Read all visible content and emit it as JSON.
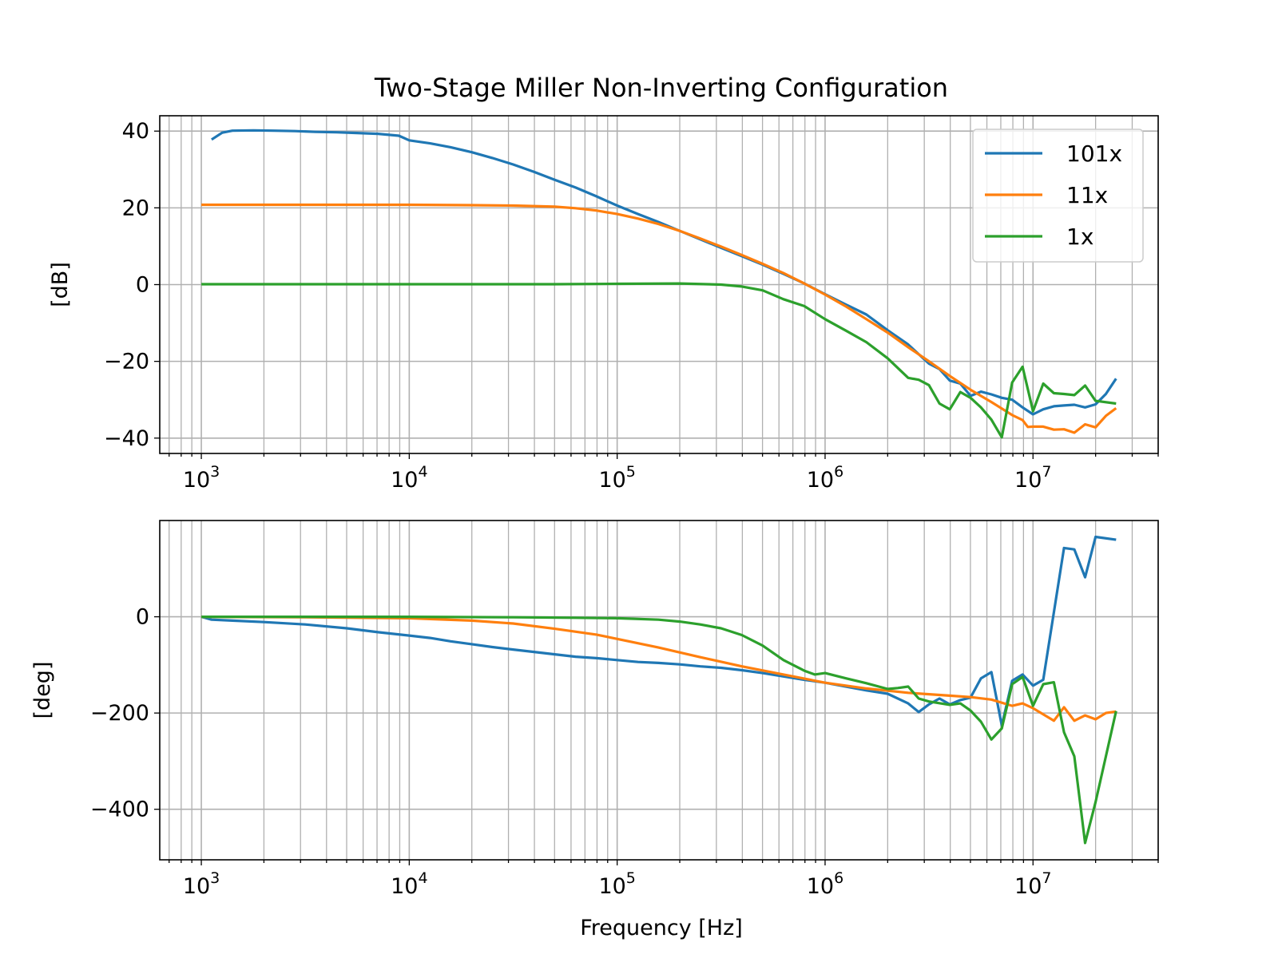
{
  "chart_data": [
    {
      "type": "line",
      "title": "Two-Stage Miller Non-Inverting Configuration",
      "xlabel": "",
      "ylabel": "[dB]",
      "xscale": "log",
      "xlim": [
        631,
        40000000
      ],
      "ylim": [
        -44,
        44
      ],
      "xticks": [
        {
          "value": 1000,
          "label": "10^3"
        },
        {
          "value": 10000,
          "label": "10^4"
        },
        {
          "value": 100000,
          "label": "10^5"
        },
        {
          "value": 1000000,
          "label": "10^6"
        },
        {
          "value": 10000000,
          "label": "10^7"
        }
      ],
      "yticks": [
        {
          "value": 40,
          "label": "40"
        },
        {
          "value": 20,
          "label": "20"
        },
        {
          "value": 0,
          "label": "0"
        },
        {
          "value": -20,
          "label": "−20"
        },
        {
          "value": -40,
          "label": "−40"
        }
      ],
      "grid": true,
      "legend": {
        "position": "upper-right",
        "entries": [
          "101x",
          "11x",
          "1x"
        ]
      },
      "series": [
        {
          "name": "101x",
          "color": "#1f77b4",
          "points": [
            [
              1120,
              37.8
            ],
            [
              1260,
              39.6
            ],
            [
              1410,
              40.1
            ],
            [
              1780,
              40.2
            ],
            [
              2240,
              40.1
            ],
            [
              2820,
              40.0
            ],
            [
              3550,
              39.8
            ],
            [
              4470,
              39.7
            ],
            [
              5620,
              39.5
            ],
            [
              7080,
              39.3
            ],
            [
              8910,
              38.8
            ],
            [
              10000,
              37.6
            ],
            [
              12600,
              36.8
            ],
            [
              15800,
              35.8
            ],
            [
              20000,
              34.5
            ],
            [
              25100,
              33.0
            ],
            [
              31600,
              31.3
            ],
            [
              39800,
              29.4
            ],
            [
              50100,
              27.3
            ],
            [
              63100,
              25.3
            ],
            [
              79400,
              23.0
            ],
            [
              100000,
              20.6
            ],
            [
              126000,
              18.4
            ],
            [
              158000,
              16.3
            ],
            [
              200000,
              14.0
            ],
            [
              251000,
              11.8
            ],
            [
              316000,
              9.6
            ],
            [
              398000,
              7.4
            ],
            [
              501000,
              5.2
            ],
            [
              631000,
              2.8
            ],
            [
              794000,
              0.3
            ],
            [
              1000000,
              -2.5
            ],
            [
              1260000,
              -5.2
            ],
            [
              1580000,
              -7.8
            ],
            [
              2000000,
              -11.9
            ],
            [
              2510000,
              -15.6
            ],
            [
              3160000,
              -20.6
            ],
            [
              3550000,
              -22.0
            ],
            [
              3980000,
              -25.0
            ],
            [
              4470000,
              -25.8
            ],
            [
              5010000,
              -29.0
            ],
            [
              5620000,
              -27.9
            ],
            [
              6310000,
              -28.6
            ],
            [
              7080000,
              -29.5
            ],
            [
              7940000,
              -30.0
            ],
            [
              8910000,
              -32.0
            ],
            [
              10000000,
              -33.8
            ],
            [
              11200000,
              -32.5
            ],
            [
              12600000,
              -31.7
            ],
            [
              14100000,
              -31.5
            ],
            [
              15800000,
              -31.3
            ],
            [
              17800000,
              -32.0
            ],
            [
              20000000,
              -31.2
            ],
            [
              22400000,
              -28.5
            ],
            [
              25100000,
              -24.5
            ]
          ]
        },
        {
          "name": "11x",
          "color": "#ff7f0e",
          "points": [
            [
              1000,
              20.8
            ],
            [
              3160,
              20.8
            ],
            [
              10000,
              20.8
            ],
            [
              20000,
              20.7
            ],
            [
              31600,
              20.6
            ],
            [
              50100,
              20.3
            ],
            [
              63100,
              19.9
            ],
            [
              79400,
              19.3
            ],
            [
              100000,
              18.4
            ],
            [
              126000,
              17.2
            ],
            [
              158000,
              15.8
            ],
            [
              200000,
              14.0
            ],
            [
              251000,
              12.0
            ],
            [
              316000,
              9.9
            ],
            [
              398000,
              7.7
            ],
            [
              501000,
              5.4
            ],
            [
              631000,
              3.0
            ],
            [
              794000,
              0.3
            ],
            [
              1000000,
              -2.6
            ],
            [
              1260000,
              -5.7
            ],
            [
              1580000,
              -9.0
            ],
            [
              2000000,
              -12.5
            ],
            [
              2510000,
              -16.3
            ],
            [
              3160000,
              -20.0
            ],
            [
              3980000,
              -23.8
            ],
            [
              5010000,
              -27.4
            ],
            [
              6310000,
              -30.6
            ],
            [
              7940000,
              -34.0
            ],
            [
              8910000,
              -35.3
            ],
            [
              9440000,
              -37.1
            ],
            [
              10000000,
              -37.0
            ],
            [
              11200000,
              -37.0
            ],
            [
              12600000,
              -37.8
            ],
            [
              14100000,
              -37.7
            ],
            [
              15800000,
              -38.6
            ],
            [
              17800000,
              -36.4
            ],
            [
              20000000,
              -37.2
            ],
            [
              22400000,
              -34.2
            ],
            [
              25100000,
              -32.2
            ]
          ]
        },
        {
          "name": "1x",
          "color": "#2ca02c",
          "points": [
            [
              1000,
              0.1
            ],
            [
              10000,
              0.1
            ],
            [
              50100,
              0.1
            ],
            [
              100000,
              0.2
            ],
            [
              200000,
              0.3
            ],
            [
              316000,
              0.0
            ],
            [
              398000,
              -0.5
            ],
            [
              501000,
              -1.5
            ],
            [
              631000,
              -3.8
            ],
            [
              794000,
              -5.6
            ],
            [
              1000000,
              -9.0
            ],
            [
              1260000,
              -12.0
            ],
            [
              1580000,
              -15.0
            ],
            [
              2000000,
              -19.2
            ],
            [
              2510000,
              -24.3
            ],
            [
              2820000,
              -24.8
            ],
            [
              3160000,
              -26.2
            ],
            [
              3550000,
              -31.0
            ],
            [
              3980000,
              -32.5
            ],
            [
              4470000,
              -28.0
            ],
            [
              5010000,
              -29.5
            ],
            [
              5620000,
              -32.0
            ],
            [
              6310000,
              -35.2
            ],
            [
              7080000,
              -39.8
            ],
            [
              7940000,
              -25.5
            ],
            [
              8910000,
              -21.4
            ],
            [
              10000000,
              -33.0
            ],
            [
              11200000,
              -25.8
            ],
            [
              12600000,
              -28.3
            ],
            [
              14100000,
              -28.5
            ],
            [
              15800000,
              -28.8
            ],
            [
              17800000,
              -26.3
            ],
            [
              20000000,
              -30.3
            ],
            [
              25100000,
              -31.0
            ]
          ]
        }
      ]
    },
    {
      "type": "line",
      "title": "",
      "xlabel": "Frequency [Hz]",
      "ylabel": "[deg]",
      "xscale": "log",
      "xlim": [
        631,
        40000000
      ],
      "ylim": [
        -505,
        200
      ],
      "xticks": [
        {
          "value": 1000,
          "label": "10^3"
        },
        {
          "value": 10000,
          "label": "10^4"
        },
        {
          "value": 100000,
          "label": "10^5"
        },
        {
          "value": 1000000,
          "label": "10^6"
        },
        {
          "value": 10000000,
          "label": "10^7"
        }
      ],
      "yticks": [
        {
          "value": 0,
          "label": "0"
        },
        {
          "value": -200,
          "label": "−200"
        },
        {
          "value": -400,
          "label": "−400"
        }
      ],
      "grid": true,
      "series": [
        {
          "name": "101x",
          "color": "#1f77b4",
          "points": [
            [
              1000,
              0
            ],
            [
              1120,
              -6
            ],
            [
              1410,
              -8
            ],
            [
              2000,
              -11
            ],
            [
              3160,
              -16
            ],
            [
              5010,
              -24
            ],
            [
              7080,
              -32
            ],
            [
              10000,
              -39
            ],
            [
              12600,
              -44
            ],
            [
              15800,
              -51
            ],
            [
              20000,
              -57
            ],
            [
              25100,
              -63
            ],
            [
              31600,
              -68
            ],
            [
              39800,
              -73
            ],
            [
              50100,
              -78
            ],
            [
              63100,
              -83
            ],
            [
              79400,
              -86
            ],
            [
              100000,
              -90
            ],
            [
              126000,
              -94
            ],
            [
              158000,
              -96
            ],
            [
              200000,
              -99
            ],
            [
              251000,
              -103
            ],
            [
              316000,
              -106
            ],
            [
              398000,
              -111
            ],
            [
              501000,
              -117
            ],
            [
              631000,
              -124
            ],
            [
              794000,
              -131
            ],
            [
              1000000,
              -137
            ],
            [
              1260000,
              -145
            ],
            [
              1580000,
              -153
            ],
            [
              2000000,
              -160
            ],
            [
              2510000,
              -180
            ],
            [
              2820000,
              -198
            ],
            [
              3160000,
              -182
            ],
            [
              3550000,
              -170
            ],
            [
              3980000,
              -182
            ],
            [
              4470000,
              -173
            ],
            [
              5010000,
              -168
            ],
            [
              5620000,
              -128
            ],
            [
              6310000,
              -115
            ],
            [
              7080000,
              -226
            ],
            [
              7940000,
              -133
            ],
            [
              8910000,
              -120
            ],
            [
              10000000,
              -143
            ],
            [
              11200000,
              -131
            ],
            [
              14100000,
              143
            ],
            [
              15800000,
              140
            ],
            [
              17800000,
              82
            ],
            [
              20000000,
              166
            ],
            [
              25100000,
              160
            ]
          ]
        },
        {
          "name": "11x",
          "color": "#ff7f0e",
          "points": [
            [
              1000,
              0
            ],
            [
              3160,
              -1
            ],
            [
              10000,
              -3
            ],
            [
              20000,
              -8
            ],
            [
              31600,
              -14
            ],
            [
              50100,
              -25
            ],
            [
              79400,
              -37
            ],
            [
              100000,
              -46
            ],
            [
              158000,
              -64
            ],
            [
              251000,
              -84
            ],
            [
              398000,
              -103
            ],
            [
              631000,
              -120
            ],
            [
              1000000,
              -137
            ],
            [
              1580000,
              -149
            ],
            [
              2510000,
              -158
            ],
            [
              3980000,
              -164
            ],
            [
              5010000,
              -167
            ],
            [
              6310000,
              -172
            ],
            [
              7940000,
              -185
            ],
            [
              8910000,
              -180
            ],
            [
              10000000,
              -190
            ],
            [
              12600000,
              -216
            ],
            [
              14100000,
              -188
            ],
            [
              15800000,
              -216
            ],
            [
              17800000,
              -205
            ],
            [
              20000000,
              -213
            ],
            [
              22400000,
              -200
            ],
            [
              25100000,
              -197
            ]
          ]
        },
        {
          "name": "1x",
          "color": "#2ca02c",
          "points": [
            [
              1000,
              0
            ],
            [
              10000,
              0
            ],
            [
              31600,
              -1
            ],
            [
              63100,
              -2
            ],
            [
              100000,
              -3
            ],
            [
              158000,
              -6
            ],
            [
              200000,
              -10
            ],
            [
              251000,
              -16
            ],
            [
              316000,
              -24
            ],
            [
              398000,
              -38
            ],
            [
              501000,
              -60
            ],
            [
              631000,
              -90
            ],
            [
              794000,
              -112
            ],
            [
              891000,
              -120
            ],
            [
              1000000,
              -117
            ],
            [
              1260000,
              -128
            ],
            [
              1580000,
              -138
            ],
            [
              2000000,
              -150
            ],
            [
              2240000,
              -148
            ],
            [
              2510000,
              -145
            ],
            [
              2820000,
              -170
            ],
            [
              3160000,
              -176
            ],
            [
              3980000,
              -183
            ],
            [
              4470000,
              -180
            ],
            [
              5010000,
              -195
            ],
            [
              5620000,
              -218
            ],
            [
              6310000,
              -255
            ],
            [
              7080000,
              -232
            ],
            [
              7940000,
              -140
            ],
            [
              8910000,
              -125
            ],
            [
              10000000,
              -185
            ],
            [
              11200000,
              -140
            ],
            [
              12600000,
              -136
            ],
            [
              14100000,
              -240
            ],
            [
              15800000,
              -290
            ],
            [
              17800000,
              -470
            ],
            [
              20000000,
              -385
            ],
            [
              25100000,
              -196
            ]
          ]
        }
      ]
    }
  ]
}
